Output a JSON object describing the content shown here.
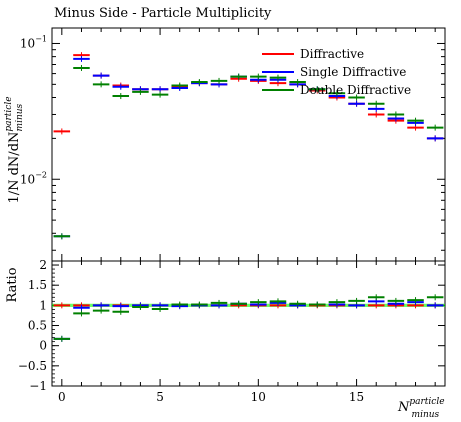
{
  "chart_data": {
    "type": "scatter",
    "title": "Minus Side - Particle Multiplicity",
    "xlabel_main": "N",
    "xlabel_sup": "particle",
    "xlabel_sub": "minus",
    "ylabel_main": "1/N dN/dN",
    "ylabel_sup": "particle",
    "ylabel_sub": "minus",
    "ratio_ylabel": "Ratio",
    "xlim": [
      -0.5,
      19.5
    ],
    "ylim": [
      0.0025,
      0.13
    ],
    "yscale": "log",
    "ratio_ylim": [
      -1,
      2.1
    ],
    "x_ticks": [
      0,
      5,
      10,
      15
    ],
    "y_tick_labels": [
      {
        "value": 0.1,
        "base": "10",
        "exp": "−1"
      },
      {
        "value": 0.01,
        "base": "10",
        "exp": "−2"
      }
    ],
    "ratio_y_ticks": [
      -1,
      -0.5,
      0,
      0.5,
      1,
      1.5,
      2
    ],
    "ratio_y_tick_labels": [
      "−1",
      "−0.5",
      "0",
      "0.5",
      "1",
      "1.5",
      "2"
    ],
    "legend_position": "top-right",
    "x": [
      0,
      1,
      2,
      3,
      4,
      5,
      6,
      7,
      8,
      9,
      10,
      11,
      12,
      13,
      14,
      15,
      16,
      17,
      18,
      19
    ],
    "series": [
      {
        "name": "Diffractive",
        "color": "#ff0000",
        "values": [
          0.0225,
          0.082,
          0.058,
          0.049,
          0.046,
          0.046,
          0.048,
          0.051,
          0.05,
          0.055,
          0.053,
          0.051,
          0.05,
          0.045,
          0.04,
          0.036,
          0.03,
          0.027,
          0.024,
          0.02
        ],
        "ratio": [
          1.0,
          1.0,
          1.0,
          1.0,
          1.0,
          1.0,
          1.0,
          1.0,
          1.0,
          1.0,
          1.0,
          1.0,
          1.0,
          1.0,
          1.0,
          1.0,
          1.0,
          1.0,
          1.0,
          1.0
        ]
      },
      {
        "name": "Single Diffractive",
        "color": "#0000ff",
        "values": [
          0.0038,
          0.077,
          0.058,
          0.048,
          0.046,
          0.046,
          0.047,
          0.051,
          0.05,
          0.057,
          0.054,
          0.054,
          0.05,
          0.046,
          0.041,
          0.036,
          0.033,
          0.028,
          0.026,
          0.02
        ],
        "ratio": [
          0.17,
          0.94,
          1.0,
          0.98,
          1.0,
          1.0,
          0.98,
          1.0,
          1.0,
          1.04,
          1.02,
          1.06,
          1.0,
          1.02,
          1.02,
          1.0,
          1.1,
          1.04,
          1.08,
          1.0
        ]
      },
      {
        "name": "Double Diffractive",
        "color": "#008000",
        "values": [
          0.0038,
          0.066,
          0.05,
          0.041,
          0.044,
          0.042,
          0.049,
          0.052,
          0.053,
          0.057,
          0.057,
          0.056,
          0.052,
          0.046,
          0.043,
          0.04,
          0.036,
          0.03,
          0.027,
          0.024
        ],
        "ratio": [
          0.17,
          0.8,
          0.87,
          0.84,
          0.96,
          0.91,
          1.02,
          1.02,
          1.06,
          1.04,
          1.08,
          1.1,
          1.04,
          1.02,
          1.08,
          1.11,
          1.2,
          1.11,
          1.13,
          1.2
        ]
      }
    ]
  }
}
